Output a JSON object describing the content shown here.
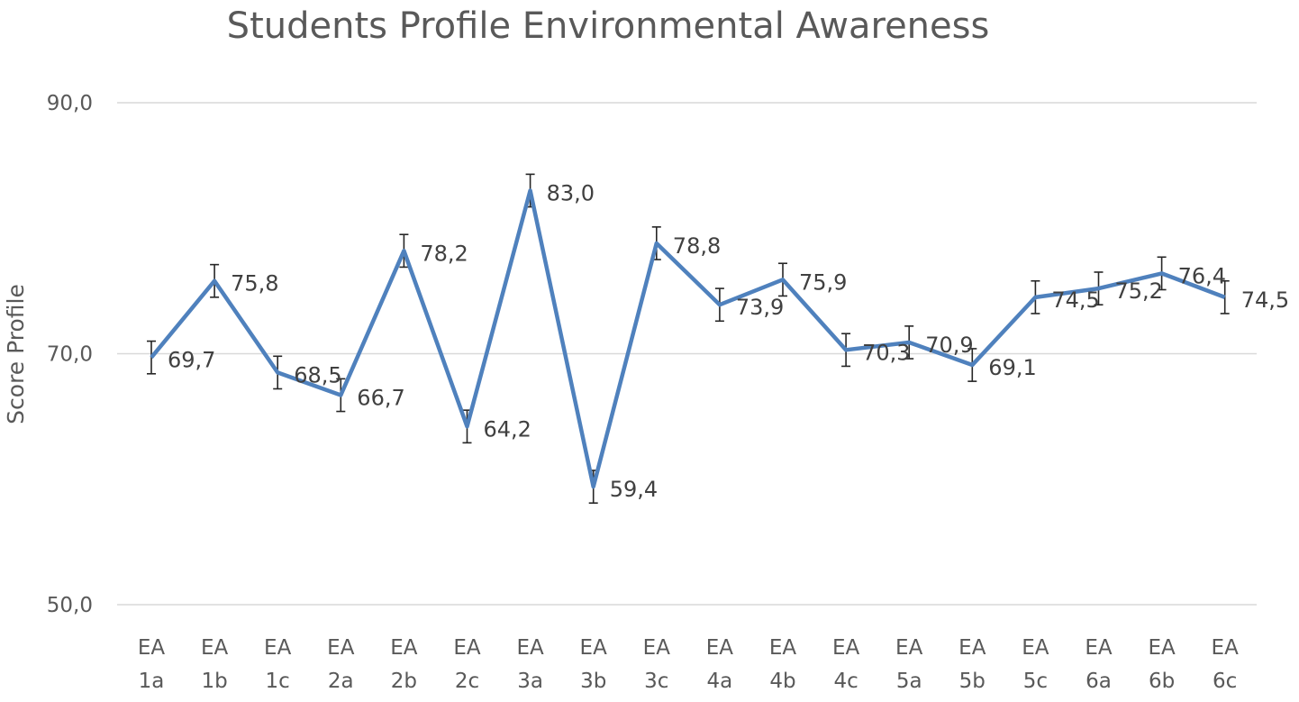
{
  "chart_data": {
    "type": "line",
    "title": "Students Profile Environmental Awareness",
    "xlabel": "",
    "ylabel": "Score Profile",
    "ylim": [
      50,
      90
    ],
    "yticks": [
      "50,0",
      "70,0",
      "90,0"
    ],
    "ytick_values": [
      50,
      70,
      90
    ],
    "grid": true,
    "legend": "none",
    "categories": [
      [
        "EA",
        "1a"
      ],
      [
        "EA",
        "1b"
      ],
      [
        "EA",
        "1c"
      ],
      [
        "EA",
        "2a"
      ],
      [
        "EA",
        "2b"
      ],
      [
        "EA",
        "2c"
      ],
      [
        "EA",
        "3a"
      ],
      [
        "EA",
        "3b"
      ],
      [
        "EA",
        "3c"
      ],
      [
        "EA",
        "4a"
      ],
      [
        "EA",
        "4b"
      ],
      [
        "EA",
        "4c"
      ],
      [
        "EA",
        "5a"
      ],
      [
        "EA",
        "5b"
      ],
      [
        "EA",
        "5c"
      ],
      [
        "EA",
        "6a"
      ],
      [
        "EA",
        "6b"
      ],
      [
        "EA",
        "6c"
      ]
    ],
    "series": [
      {
        "values": [
          69.7,
          75.8,
          68.5,
          66.7,
          78.2,
          64.2,
          83.0,
          59.4,
          78.8,
          73.9,
          75.9,
          70.3,
          70.9,
          69.1,
          74.5,
          75.2,
          76.4,
          74.5
        ],
        "data_labels": [
          "69,7",
          "75,8",
          "68,5",
          "66,7",
          "78,2",
          "64,2",
          "83,0",
          "59,4",
          "78,8",
          "73,9",
          "75,9",
          "70,3",
          "70,9",
          "69,1",
          "74,5",
          "75,2",
          "76,4",
          "74,5"
        ],
        "error": 1.3,
        "color": "#4f81bd"
      }
    ]
  }
}
